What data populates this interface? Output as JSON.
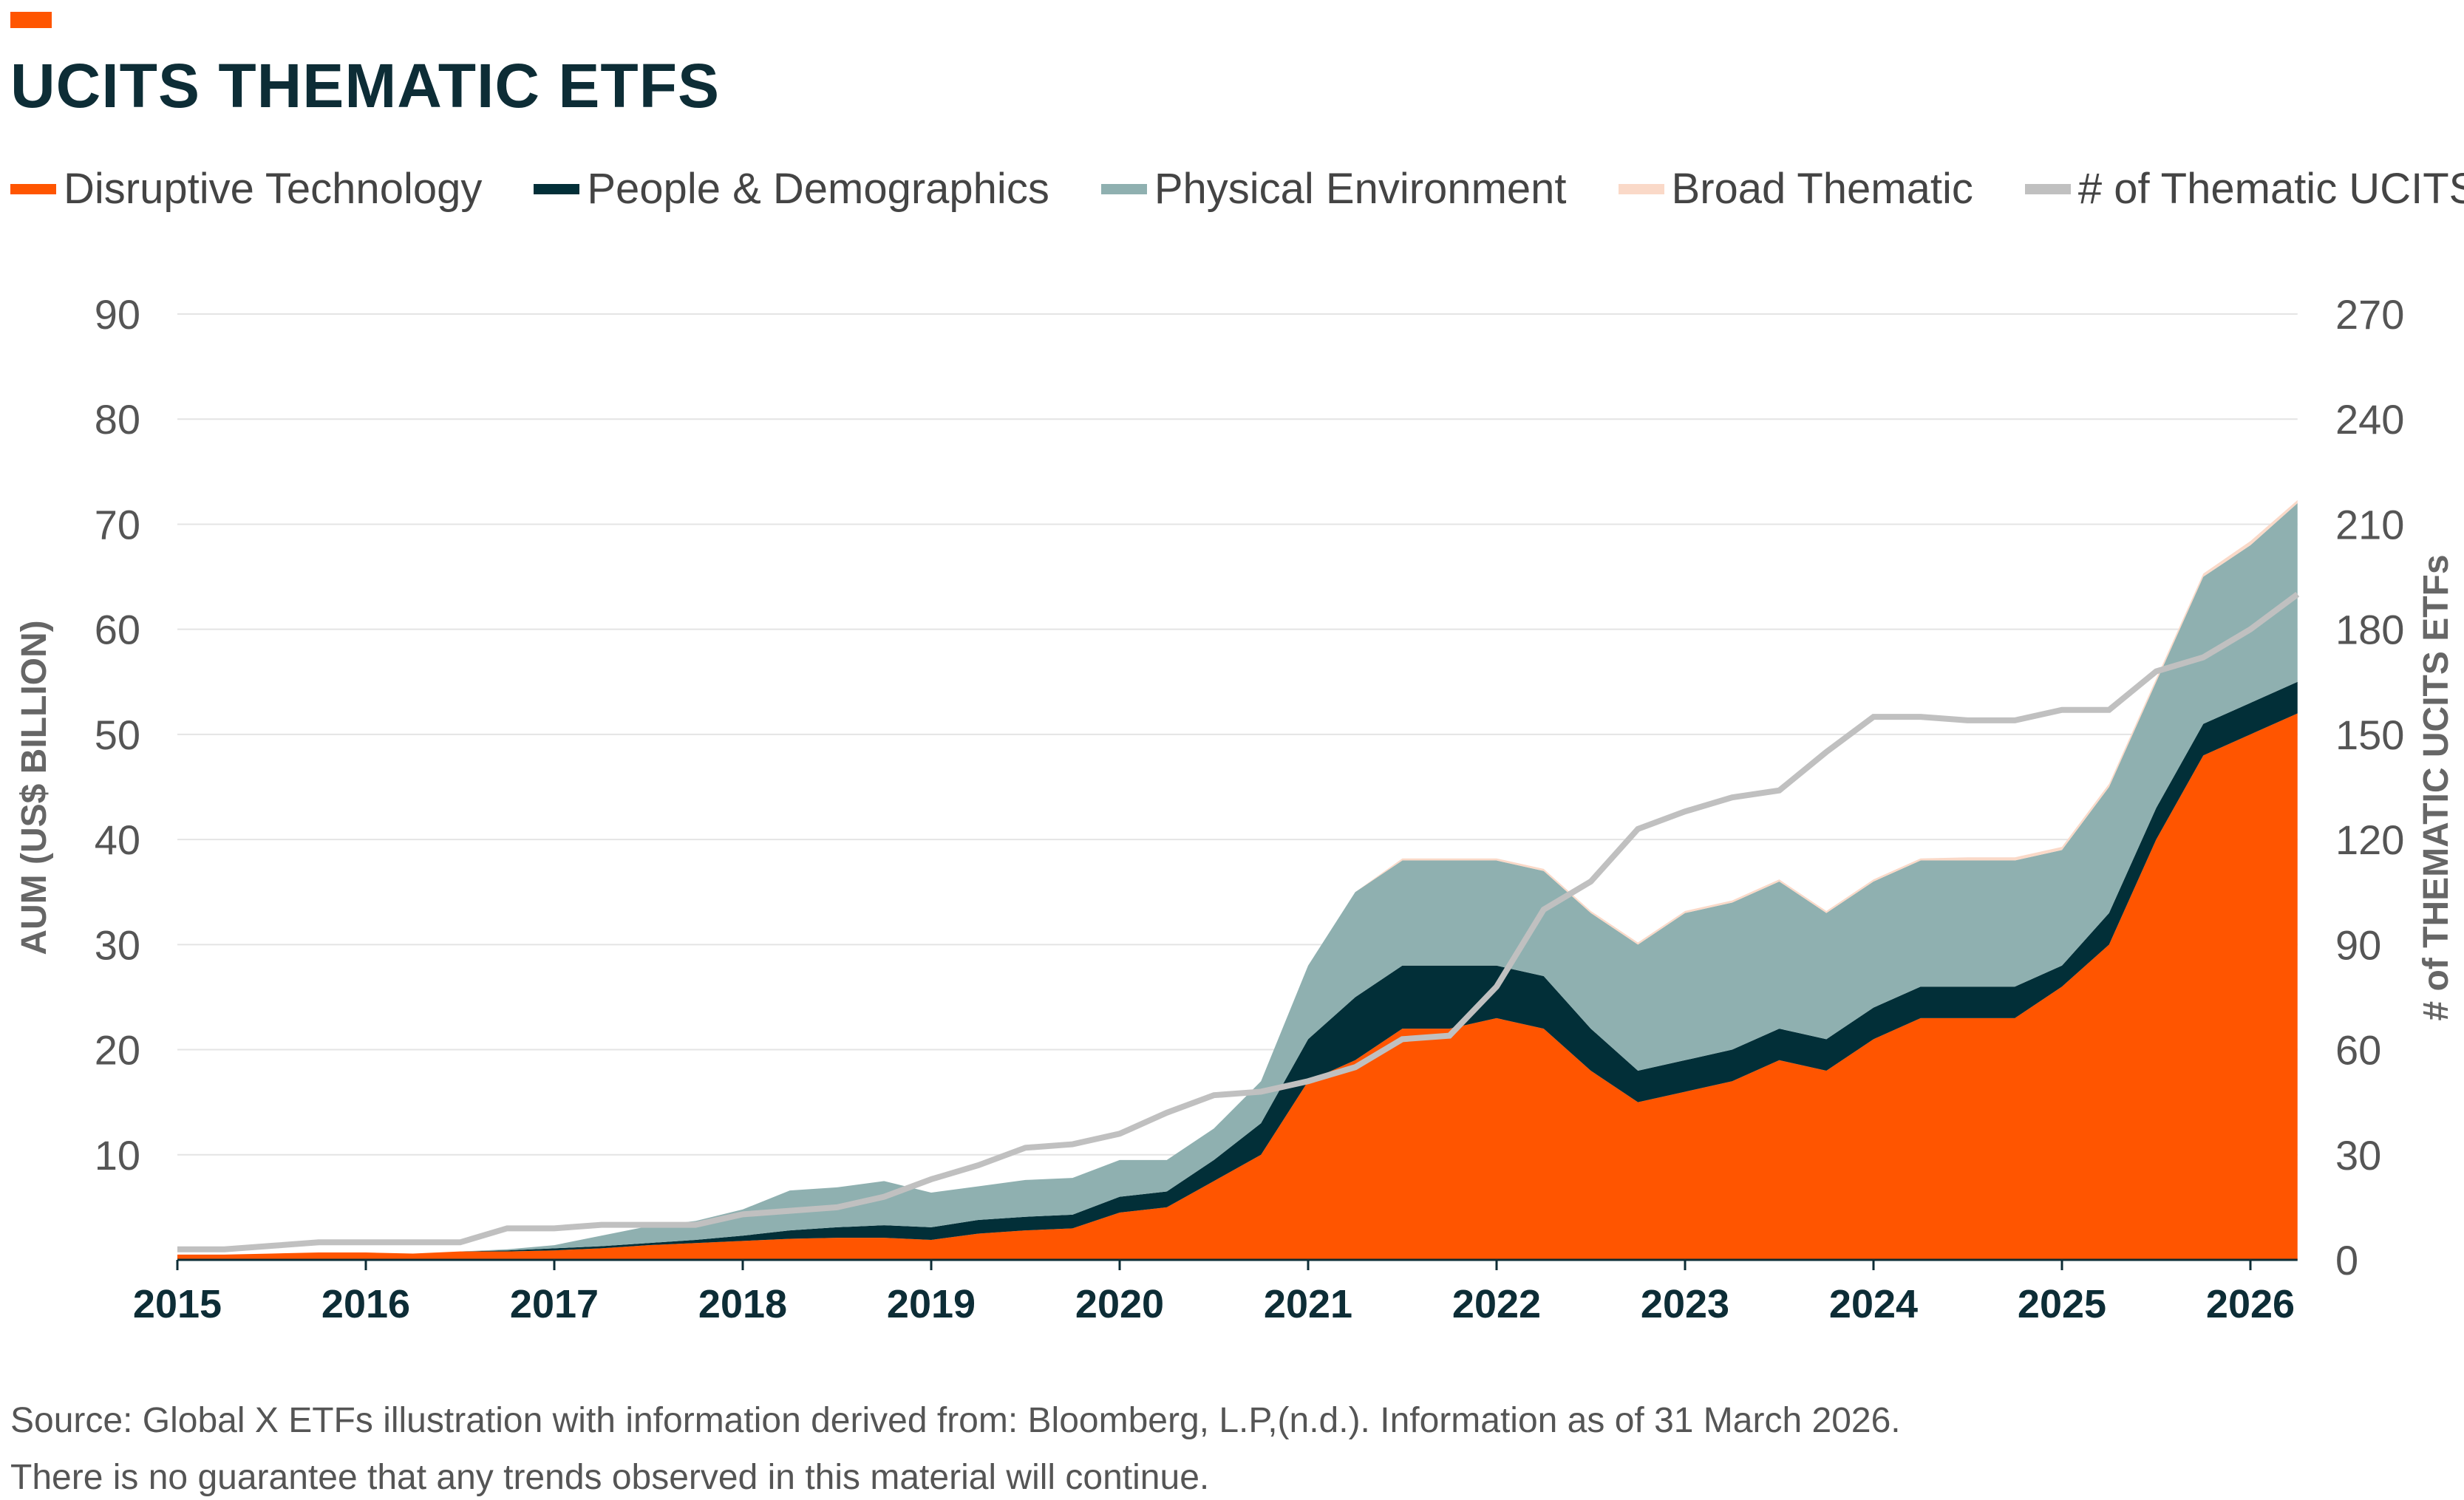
{
  "title": "UCITS THEMATIC ETFS",
  "source_line1": "Source: Global X ETFs illustration with information derived from: Bloomberg, L.P,(n.d.). Information as of 31 March 2026.",
  "source_line2": "There is no guarantee that any trends observed in this material will continue.",
  "chart_data": {
    "type": "area",
    "stacked": true,
    "ylabel": "AUM (US$ BILLION)",
    "y2label": "# of THEMATIC UCITS ETFs",
    "ylim": [
      0,
      90
    ],
    "y2lim": [
      0,
      270
    ],
    "yticks": [
      "10",
      "20",
      "30",
      "40",
      "50",
      "60",
      "70",
      "80",
      "90"
    ],
    "y2ticks": [
      "0",
      "30",
      "60",
      "90",
      "120",
      "150",
      "180",
      "210",
      "240",
      "270"
    ],
    "xticks": [
      "2015",
      "2016",
      "2017",
      "2018",
      "2019",
      "2020",
      "2021",
      "2022",
      "2023",
      "2024",
      "2025",
      "2026"
    ],
    "grid": true,
    "legend_position": "top",
    "x": [
      2015.0,
      2015.25,
      2015.5,
      2015.75,
      2016.0,
      2016.25,
      2016.5,
      2016.75,
      2017.0,
      2017.25,
      2017.5,
      2017.75,
      2018.0,
      2018.25,
      2018.5,
      2018.75,
      2019.0,
      2019.25,
      2019.5,
      2019.75,
      2020.0,
      2020.25,
      2020.5,
      2020.75,
      2021.0,
      2021.25,
      2021.5,
      2021.75,
      2022.0,
      2022.25,
      2022.5,
      2022.75,
      2023.0,
      2023.25,
      2023.5,
      2023.75,
      2024.0,
      2024.25,
      2024.5,
      2024.75,
      2025.0,
      2025.25,
      2025.5,
      2025.75,
      2026.0,
      2026.25
    ],
    "series": [
      {
        "name": "Disruptive Technology",
        "color": "#FF5500",
        "axis": "left",
        "values": [
          0.5,
          0.5,
          0.6,
          0.7,
          0.7,
          0.6,
          0.8,
          0.8,
          0.9,
          1.1,
          1.4,
          1.6,
          1.8,
          2.0,
          2.1,
          2.1,
          1.9,
          2.5,
          2.8,
          3.0,
          4.5,
          5.0,
          7.5,
          10,
          17,
          19,
          22,
          22,
          23,
          22,
          18,
          15,
          16,
          17,
          19,
          18,
          21,
          23,
          23,
          23,
          26,
          30,
          40,
          48,
          50,
          52
        ]
      },
      {
        "name": "People & Demographics",
        "color": "#022F38",
        "axis": "left",
        "values": [
          0,
          0,
          0,
          0,
          0,
          0,
          0,
          0.1,
          0.2,
          0.2,
          0.2,
          0.3,
          0.5,
          0.8,
          1.0,
          1.2,
          1.2,
          1.3,
          1.3,
          1.3,
          1.5,
          1.5,
          2.0,
          3,
          4,
          6,
          6,
          6,
          5,
          5,
          4,
          3,
          3,
          3,
          3,
          3,
          3,
          3,
          3,
          3,
          2,
          3,
          3,
          3,
          3,
          3
        ]
      },
      {
        "name": "Physical Environment",
        "color": "#8FB0B0",
        "axis": "left",
        "values": [
          0,
          0,
          0,
          0,
          0,
          0,
          0,
          0.1,
          0.3,
          1.0,
          1.6,
          1.8,
          2.5,
          3.8,
          3.8,
          4.2,
          3.3,
          3.2,
          3.5,
          3.5,
          3.5,
          3.0,
          3.0,
          4,
          7,
          10,
          10,
          10,
          10,
          10,
          11,
          12,
          14,
          14,
          14,
          12,
          12,
          12,
          12,
          12,
          11,
          12,
          12,
          14,
          15,
          17
        ]
      },
      {
        "name": "Broad Thematic",
        "color": "#FAD9C8",
        "axis": "left",
        "values": [
          0,
          0,
          0,
          0,
          0,
          0,
          0,
          0,
          0,
          0,
          0,
          0,
          0,
          0,
          0,
          0,
          0,
          0,
          0,
          0,
          0,
          0,
          0,
          0,
          0,
          0,
          0.2,
          0.2,
          0.2,
          0.2,
          0.2,
          0.2,
          0.2,
          0.2,
          0.2,
          0.2,
          0.2,
          0.2,
          0.3,
          0.3,
          0.3,
          0.3,
          0.3,
          0.3,
          0.4,
          0.3
        ]
      },
      {
        "name": "# of Thematic UCITS",
        "color": "#C0C0C0",
        "axis": "right",
        "type": "line",
        "values": [
          3,
          3,
          4,
          5,
          5,
          5,
          5,
          9,
          9,
          10,
          10,
          10,
          13,
          14,
          15,
          18,
          23,
          27,
          32,
          33,
          36,
          42,
          47,
          48,
          51,
          55,
          63,
          64,
          78,
          100,
          108,
          123,
          128,
          132,
          134,
          145,
          155,
          155,
          154,
          154,
          157,
          157,
          168,
          172,
          180,
          190
        ]
      }
    ]
  }
}
